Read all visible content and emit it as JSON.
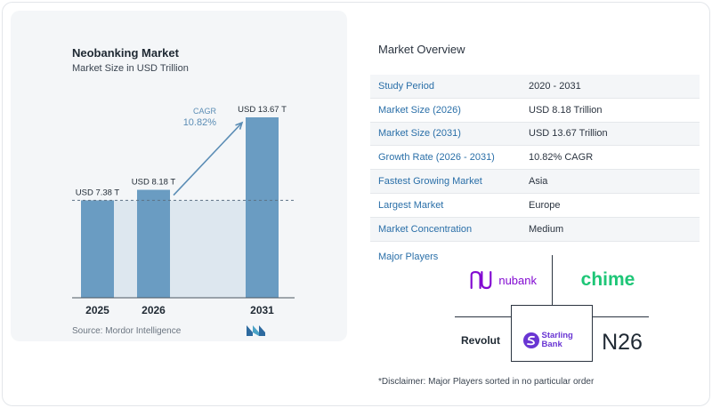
{
  "chart": {
    "title": "Neobanking Market",
    "subtitle": "Market Size in USD Trillion",
    "source": "Source: Mordor Intelligence",
    "logo_icon": "mordor-intelligence-logo",
    "cagr_label": "CAGR",
    "cagr_value": "10.82%"
  },
  "chart_data": {
    "type": "bar",
    "title": "Neobanking Market",
    "subtitle": "Market Size in USD Trillion",
    "categories": [
      "2025",
      "2026",
      "2031"
    ],
    "values": [
      7.38,
      8.18,
      13.67
    ],
    "data_labels": [
      "USD 7.38 T",
      "USD 8.18 T",
      "USD 13.67 T"
    ],
    "annotation": {
      "label": "CAGR",
      "value": "10.82%"
    },
    "ylim": [
      0,
      13.67
    ],
    "grid": false,
    "colors": {
      "bar": "#6a9cc2",
      "band": "#dde7ef",
      "arrow": "#5b8db5"
    }
  },
  "overview": {
    "title": "Market Overview",
    "rows": [
      {
        "key": "Study Period",
        "value": "2020 - 2031"
      },
      {
        "key": "Market Size (2026)",
        "value": "USD 8.18 Trillion"
      },
      {
        "key": "Market Size (2031)",
        "value": "USD 13.67 Trillion"
      },
      {
        "key": "Growth Rate (2026 - 2031)",
        "value": "10.82% CAGR"
      },
      {
        "key": "Fastest Growing Market",
        "value": "Asia"
      },
      {
        "key": "Largest Market",
        "value": "Europe"
      },
      {
        "key": "Market Concentration",
        "value": "Medium"
      }
    ]
  },
  "players": {
    "title": "Major Players",
    "names": [
      "nubank",
      "chime",
      "Revolut",
      "Starling Bank",
      "N26"
    ],
    "colors": {
      "nubank": "#820ad1",
      "chime": "#1ec677",
      "starling": "#6935d3"
    }
  },
  "disclaimer": "*Disclaimer: Major Players sorted in no particular order",
  "colors": {
    "accent": "#2a6fa8",
    "card_bg": "#f4f6f8"
  }
}
